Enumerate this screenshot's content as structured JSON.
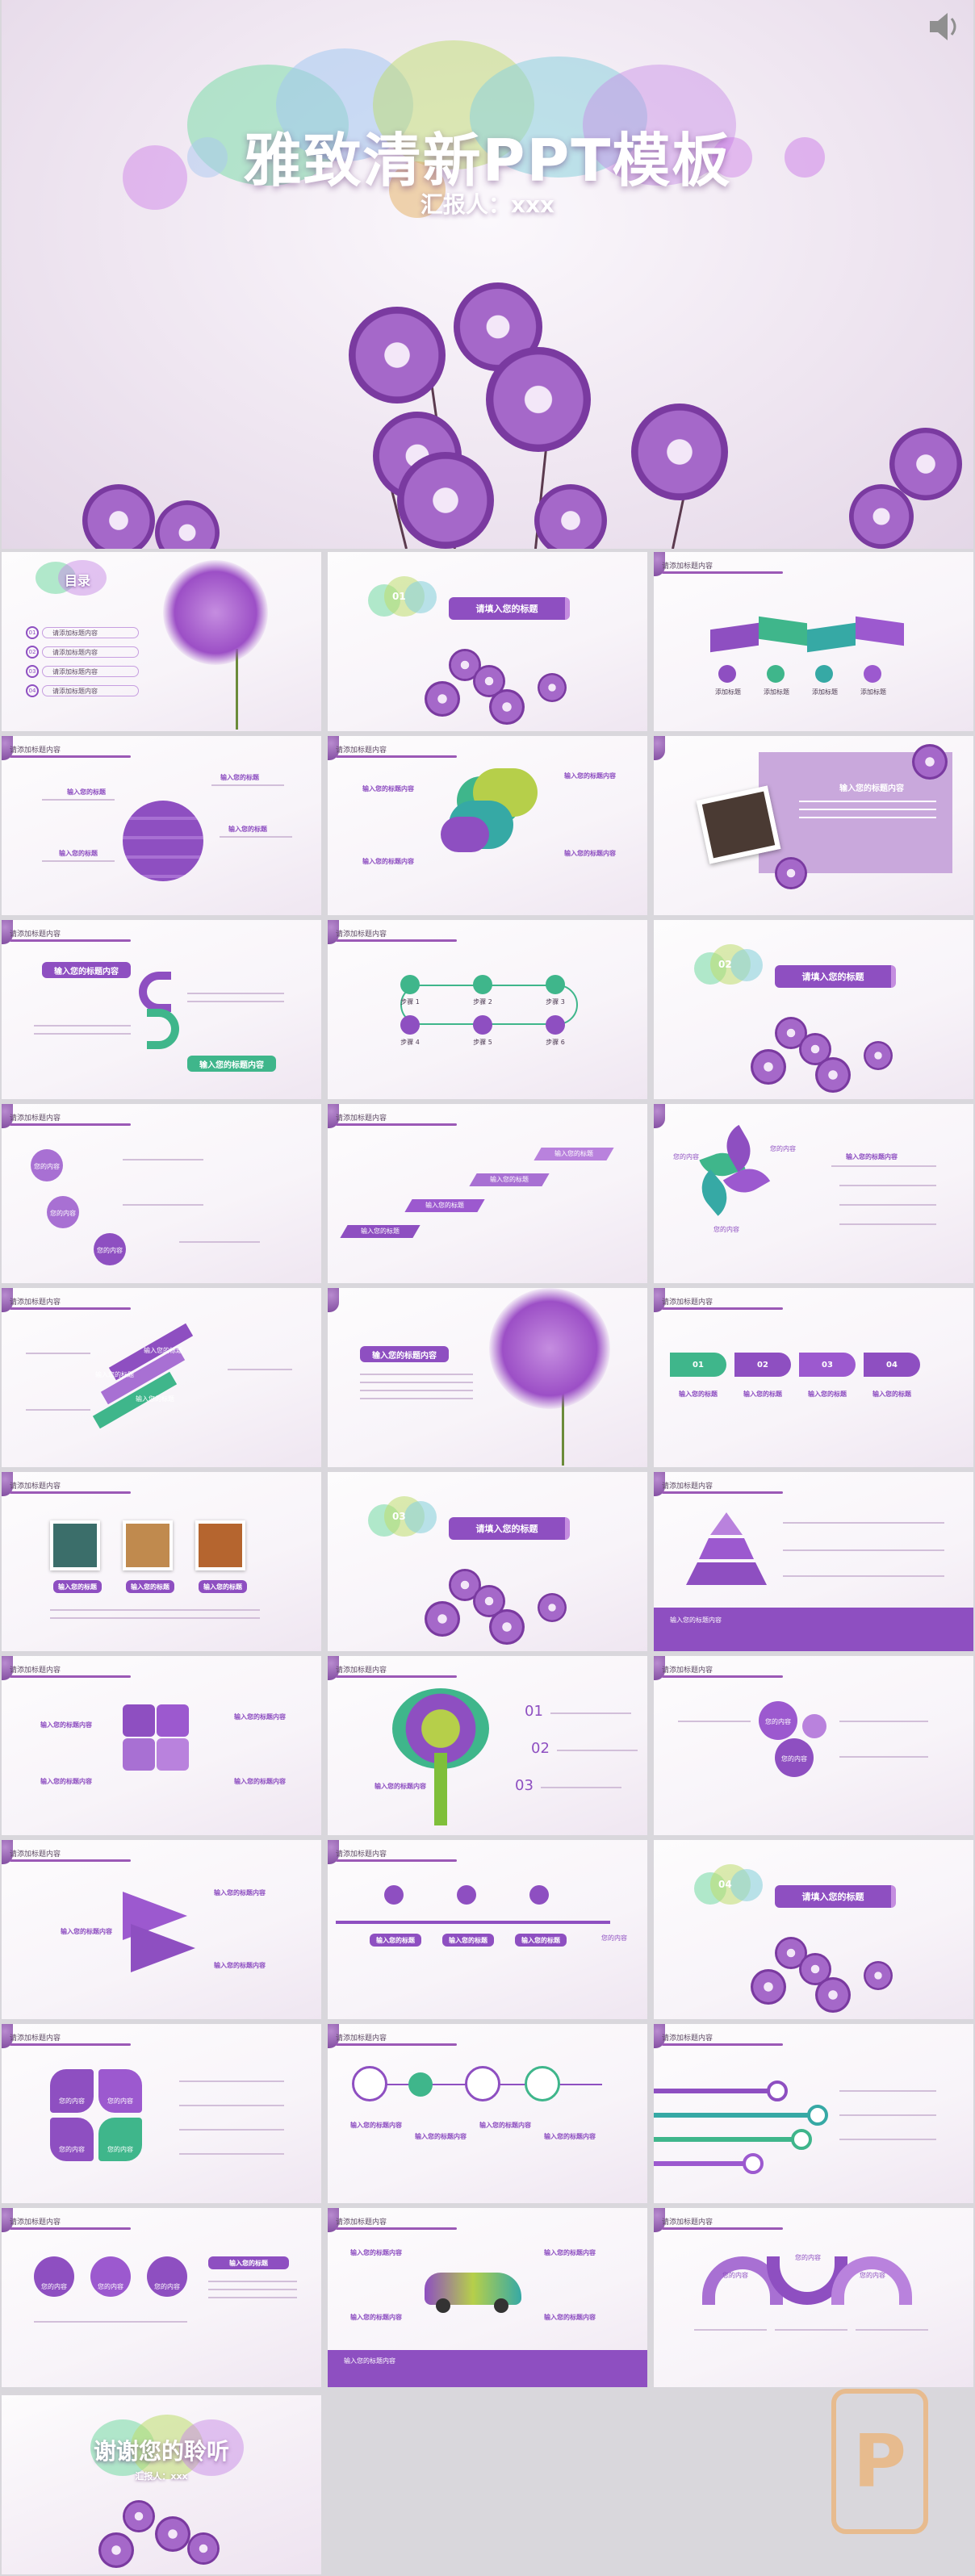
{
  "cover": {
    "title": "雅致清新PPT模板",
    "subtitle": "汇报人：xxx",
    "speaker_icon": "speaker-icon"
  },
  "toc": {
    "title": "目录",
    "items": [
      "请添加标题内容",
      "请添加标题内容",
      "请添加标题内容",
      "请添加标题内容"
    ],
    "numbers": [
      "01",
      "02",
      "03",
      "04"
    ]
  },
  "section": {
    "numbers": [
      "01",
      "02",
      "03",
      "04"
    ],
    "label": "请填入您的标题"
  },
  "slide_header": "请添加标题内容",
  "labels": {
    "input_title": "输入您的标题",
    "add_title": "添加标题",
    "input_title_long": "输入您的标题内容",
    "steps": [
      "步骤 1",
      "步骤 2",
      "步骤 3",
      "步骤 4",
      "步骤 5",
      "步骤 6"
    ],
    "content": "您的内容",
    "tree_numbers": [
      "01",
      "02",
      "03"
    ],
    "text_placeholder": "输入文本"
  },
  "thanks": {
    "title": "谢谢您的聆听",
    "subtitle": "汇报人：xxx"
  },
  "watermark": "P",
  "colors": {
    "purple": "#8e4fc1",
    "green": "#3fb68b",
    "teal": "#36a9a5",
    "pink": "#e46aa6",
    "yellow": "#b6cf4a"
  }
}
